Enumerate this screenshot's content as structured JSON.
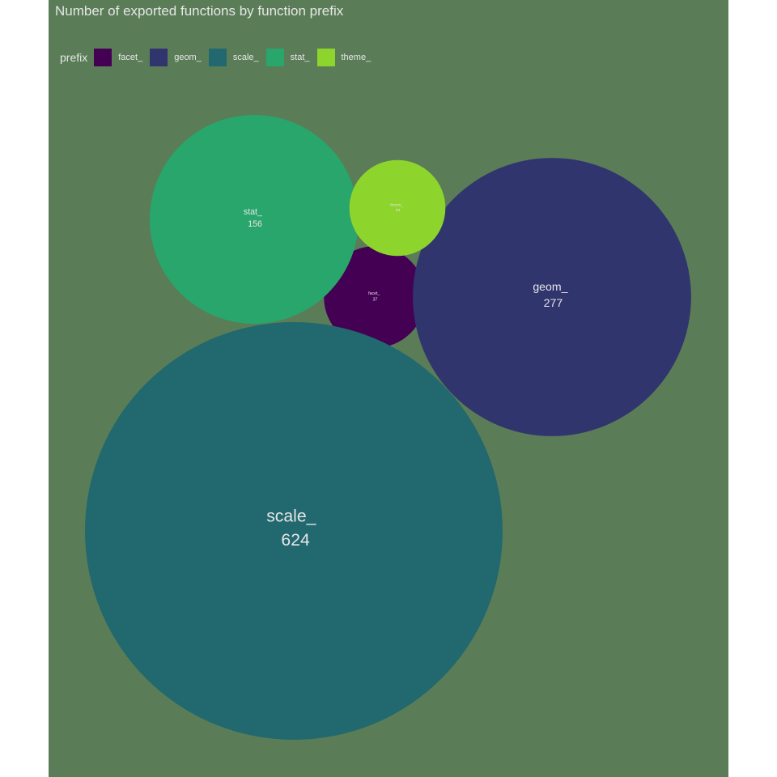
{
  "chart_data": {
    "type": "packed-bubble",
    "title": "Number of exported functions by function prefix",
    "legend": {
      "title": "prefix",
      "position": "top-left"
    },
    "categories": [
      "facet_",
      "geom_",
      "scale_",
      "stat_",
      "theme_"
    ],
    "values": [
      37,
      277,
      624,
      156,
      33
    ],
    "colors": [
      "#440154",
      "#31356e",
      "#21686f",
      "#28a66b",
      "#8dd52c"
    ]
  },
  "background_color": "#5a7d57"
}
